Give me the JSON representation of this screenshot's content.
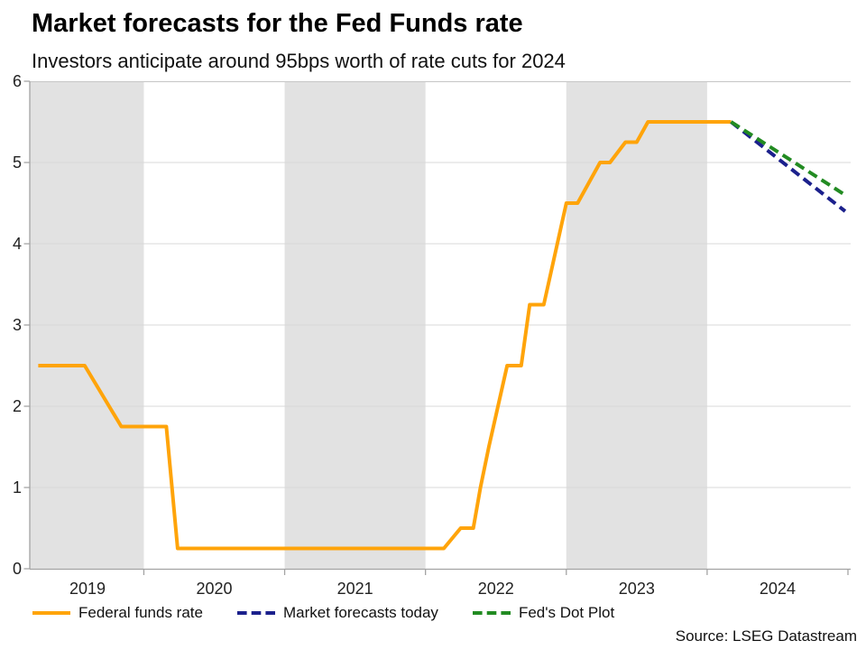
{
  "header": {
    "title": "Market forecasts for the Fed Funds rate",
    "subtitle": "Investors anticipate around 95bps worth of rate cuts for 2024"
  },
  "source": "Source: LSEG Datastream",
  "chart_data": {
    "type": "line",
    "title": "Market forecasts for the Fed Funds rate",
    "subtitle": "Investors anticipate around 95bps worth of rate cuts for 2024",
    "source": "Source: LSEG Datastream",
    "grid": true,
    "legend_position": "bottom",
    "x_axis": {
      "range": [
        2019.19,
        2025.0
      ],
      "tick_years": [
        2020,
        2021,
        2022,
        2023,
        2024,
        2025
      ],
      "labels": [
        "2019",
        "2020",
        "2021",
        "2022",
        "2023",
        "2024"
      ],
      "label_positions": [
        2019.6,
        2020.5,
        2021.5,
        2022.5,
        2023.5,
        2024.5
      ]
    },
    "y_axis": {
      "range": [
        0,
        6
      ],
      "ticks": [
        0,
        1,
        2,
        3,
        4,
        5,
        6
      ]
    },
    "shaded_bands": [
      [
        2019.19,
        2020
      ],
      [
        2021,
        2022
      ],
      [
        2023,
        2024
      ]
    ],
    "colors": {
      "band": "#E2E2E2",
      "grid": "#D8D8D8",
      "axis": "#A3A3A3",
      "top_border": "#C6C6C6",
      "text": "#222222"
    },
    "series": [
      {
        "name": "Federal funds rate",
        "color": "#FFA40A",
        "style": "solid",
        "points": [
          [
            2019.25,
            2.5
          ],
          [
            2019.58,
            2.5
          ],
          [
            2019.84,
            1.75
          ],
          [
            2020.16,
            1.75
          ],
          [
            2020.24,
            0.25
          ],
          [
            2022.13,
            0.25
          ],
          [
            2022.25,
            0.5
          ],
          [
            2022.34,
            0.5
          ],
          [
            2022.39,
            1.0
          ],
          [
            2022.45,
            1.5
          ],
          [
            2022.58,
            2.5
          ],
          [
            2022.68,
            2.5
          ],
          [
            2022.74,
            3.25
          ],
          [
            2022.84,
            3.25
          ],
          [
            2023.0,
            4.5
          ],
          [
            2023.08,
            4.5
          ],
          [
            2023.24,
            5.0
          ],
          [
            2023.31,
            5.0
          ],
          [
            2023.42,
            5.25
          ],
          [
            2023.5,
            5.25
          ],
          [
            2023.58,
            5.5
          ],
          [
            2024.17,
            5.5
          ]
        ]
      },
      {
        "name": "Market forecasts today",
        "color": "#1B208C",
        "style": "dashed",
        "points": [
          [
            2024.17,
            5.5
          ],
          [
            2024.98,
            4.4
          ]
        ]
      },
      {
        "name": "Fed's Dot Plot",
        "color": "#228B22",
        "style": "dashed",
        "points": [
          [
            2024.17,
            5.5
          ],
          [
            2024.98,
            4.6
          ]
        ]
      }
    ]
  }
}
